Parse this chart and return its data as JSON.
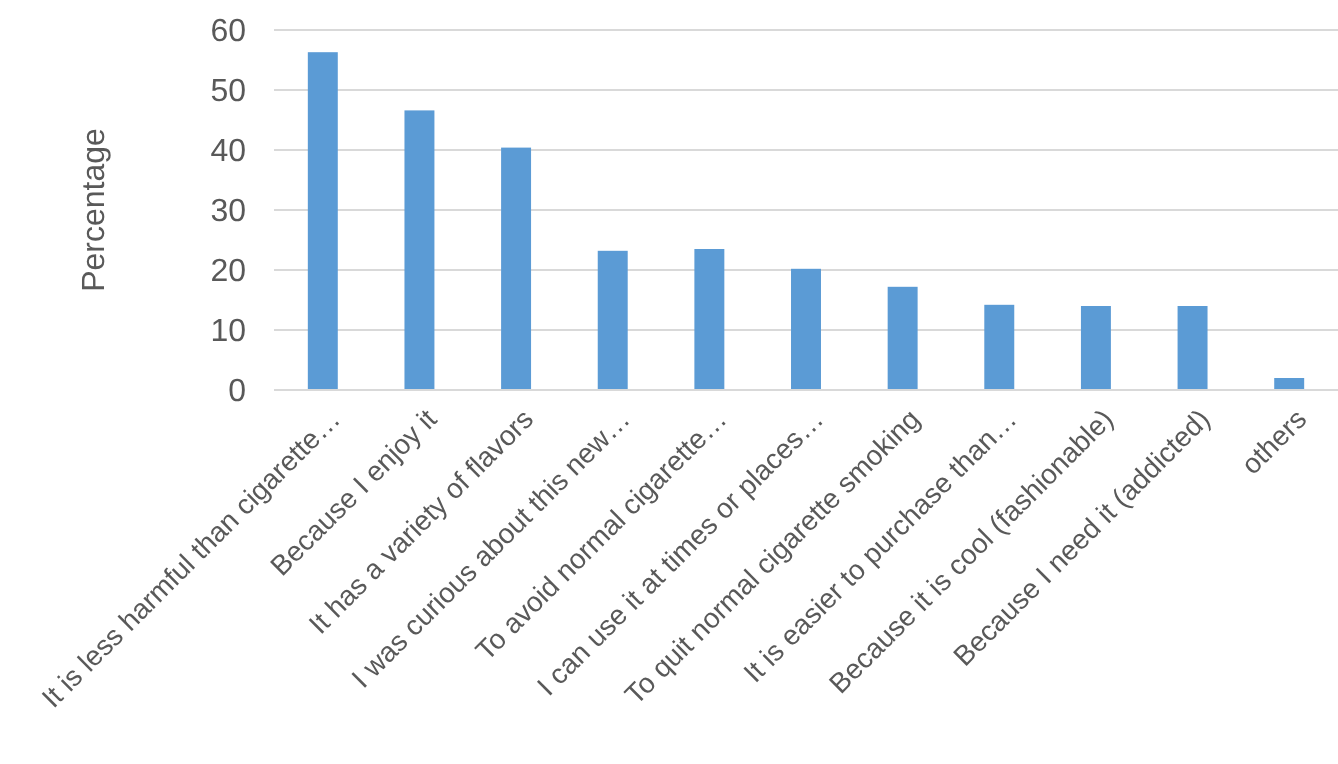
{
  "chart_data": {
    "type": "bar",
    "ylabel": "Percentage",
    "categories": [
      "It is less harmful than cigarette…",
      "Because I enjoy it",
      "It has a variety of flavors",
      "I was curious about this new…",
      "To avoid normal cigarette…",
      "I can use it at times or places…",
      "To quit normal cigarette smoking",
      "It is easier to purchase than…",
      "Because it is cool (fashionable)",
      "Because I need it (addicted)",
      "others"
    ],
    "values": [
      56.3,
      46.6,
      40.4,
      23.2,
      23.5,
      20.2,
      17.2,
      14.2,
      14,
      14,
      2
    ],
    "color": "#5b9bd5",
    "ylim": [
      0,
      60
    ],
    "yticks": [
      0,
      10,
      20,
      30,
      40,
      50,
      60
    ],
    "grid": "y"
  }
}
